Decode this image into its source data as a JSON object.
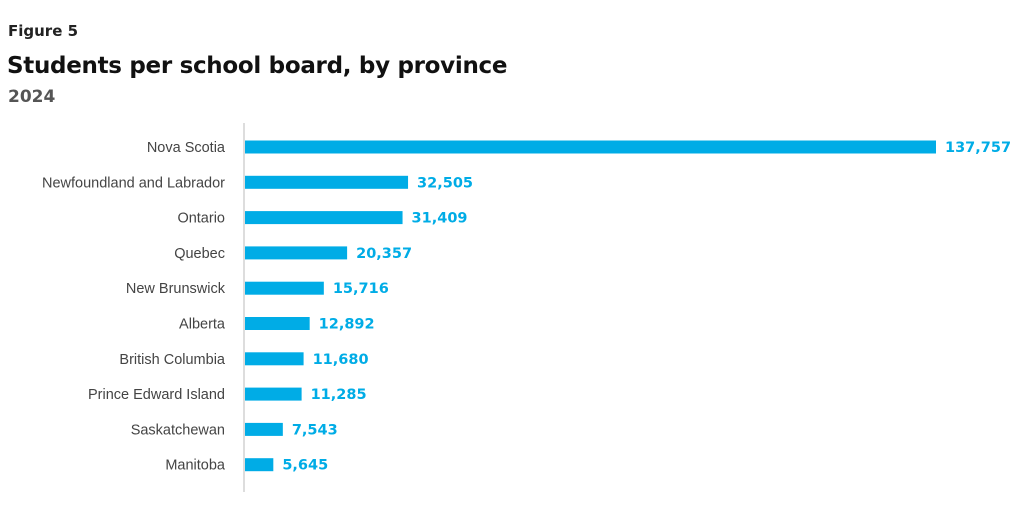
{
  "header": {
    "figure_label": "Figure 5",
    "title": "Students per school board, by province",
    "subtitle": "2024"
  },
  "colors": {
    "bar": "#00ace6",
    "value_text": "#00ace6",
    "axis": "#bbbbbb"
  },
  "chart_data": {
    "type": "bar",
    "orientation": "horizontal",
    "title": "Students per school board, by province",
    "subtitle": "2024",
    "categories": [
      "Nova Scotia",
      "Newfoundland and Labrador",
      "Ontario",
      "Quebec",
      "New Brunswick",
      "Alberta",
      "British Columbia",
      "Prince Edward Island",
      "Saskatchewan",
      "Manitoba"
    ],
    "values": [
      137757,
      32505,
      31409,
      20357,
      15716,
      12892,
      11680,
      11285,
      7543,
      5645
    ],
    "value_labels": [
      "137,757",
      "32,505",
      "31,409",
      "20,357",
      "15,716",
      "12,892",
      "11,680",
      "11,285",
      "7,543",
      "5,645"
    ],
    "xlim": [
      0,
      137757
    ],
    "grid": false,
    "legend": "none"
  }
}
